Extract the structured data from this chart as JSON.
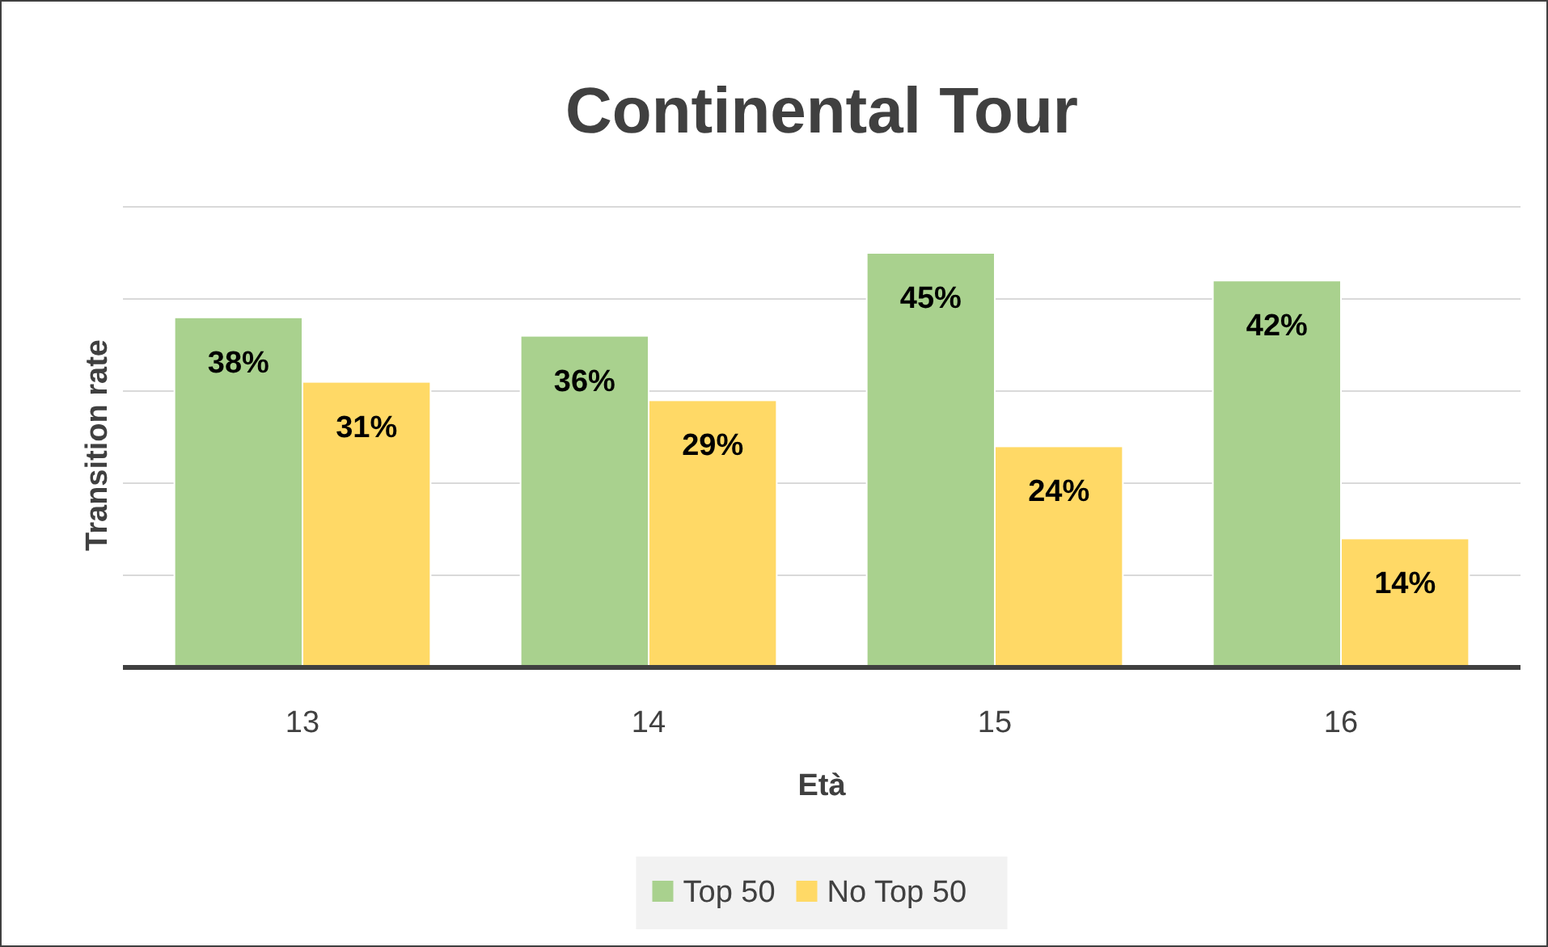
{
  "chart_data": {
    "type": "bar",
    "title": "Continental Tour",
    "xlabel": "Età",
    "ylabel": "Transition rate",
    "categories": [
      "13",
      "14",
      "15",
      "16"
    ],
    "series": [
      {
        "name": "Top 50",
        "color": "#a9d18e",
        "values": [
          38,
          36,
          45,
          42
        ],
        "value_labels": [
          "38%",
          "36%",
          "45%",
          "42%"
        ]
      },
      {
        "name": "No Top 50",
        "color": "#ffd966",
        "values": [
          31,
          29,
          24,
          14
        ],
        "value_labels": [
          "31%",
          "29%",
          "24%",
          "14%"
        ]
      }
    ],
    "ylim": [
      0,
      50
    ],
    "yticks": [
      {
        "value": 0,
        "label": null
      },
      {
        "value": 10,
        "label": null
      },
      {
        "value": 20,
        "label": null
      },
      {
        "value": 30,
        "label": null
      },
      {
        "value": 40,
        "label": null
      },
      {
        "value": 50,
        "label": null
      }
    ],
    "tick_labels": "x",
    "grid": "y",
    "legend": "bottom"
  }
}
